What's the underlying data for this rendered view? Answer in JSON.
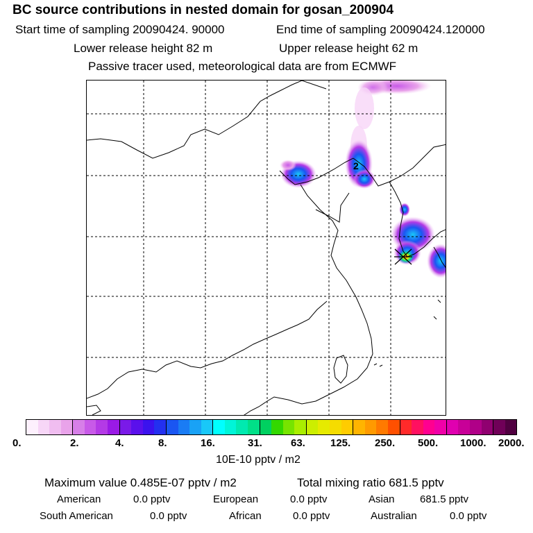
{
  "title": "BC  source contributions in nested domain for gosan_200904",
  "sampling": {
    "start": "Start time of sampling 20090424. 90000",
    "end": "End time of sampling 20090424.120000"
  },
  "release": {
    "lower": "Lower release height   82 m",
    "upper": "Upper release height   62 m"
  },
  "note": "Passive tracer used, meteorological data are from ECMWF",
  "map": {
    "contour_label": "2",
    "colors": {
      "border": "#000000",
      "grid": "#000000"
    }
  },
  "colorbar": {
    "ticks": [
      "0.",
      "2.",
      "4.",
      "8.",
      "16.",
      "31.",
      "63.",
      "125.",
      "250.",
      "500.",
      "1000.",
      "2000."
    ],
    "units": "10E-10 pptv / m2",
    "colors": [
      "#fdf0fd",
      "#f7d6f7",
      "#f0bdf0",
      "#e9a3ea",
      "#d77fe8",
      "#c85ae8",
      "#b43ae6",
      "#9a1ae6",
      "#7a1ae8",
      "#5a10ec",
      "#3b12ee",
      "#2330f0",
      "#1a56f2",
      "#1a7cf4",
      "#19a2f6",
      "#19c8f8",
      "#00ffff",
      "#00f5d8",
      "#00eab0",
      "#00e088",
      "#00d060",
      "#33d800",
      "#77e400",
      "#aaee00",
      "#ccee00",
      "#e6ea00",
      "#f5dc00",
      "#ffcc00",
      "#ffb400",
      "#ff9a00",
      "#ff7a00",
      "#ff5000",
      "#ff2a2a",
      "#ff1060",
      "#ff0090",
      "#f000a8",
      "#e000b0",
      "#c80098",
      "#b00088",
      "#900070",
      "#700058",
      "#500040"
    ]
  },
  "summary": {
    "maximum": "Maximum value  0.485E-07 pptv / m2",
    "total": "Total mixing ratio     681.5 pptv"
  },
  "regions": [
    {
      "name": "American",
      "value": "0.0 pptv"
    },
    {
      "name": "European",
      "value": "0.0 pptv"
    },
    {
      "name": "Asian",
      "value": "681.5 pptv"
    },
    {
      "name": "South American",
      "value": "0.0 pptv"
    },
    {
      "name": "African",
      "value": "0.0 pptv"
    },
    {
      "name": "Australian",
      "value": "0.0 pptv"
    }
  ]
}
